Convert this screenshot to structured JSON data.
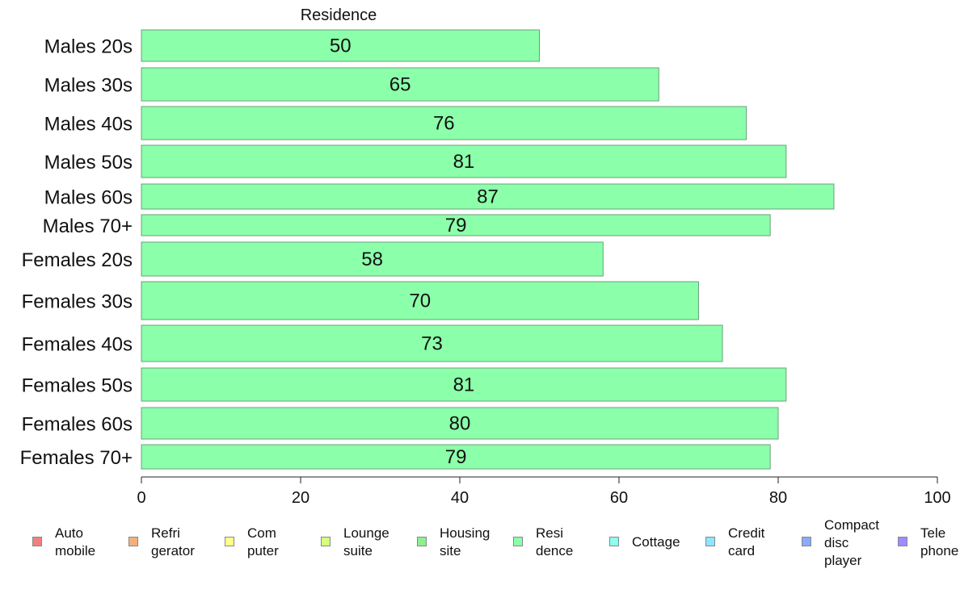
{
  "chart_data": {
    "type": "bar",
    "orientation": "horizontal",
    "title": "Residence",
    "categories": [
      "Males 20s",
      "Males 30s",
      "Males 40s",
      "Males 50s",
      "Males 60s",
      "Males 70+",
      "Females 20s",
      "Females 30s",
      "Females 40s",
      "Females 50s",
      "Females 60s",
      "Females 70+"
    ],
    "values": [
      50,
      65,
      76,
      81,
      87,
      79,
      58,
      70,
      73,
      81,
      80,
      79
    ],
    "xlim": [
      0,
      100
    ],
    "xticks": [
      0,
      20,
      40,
      60,
      80,
      100
    ],
    "xlabel": "",
    "ylabel": "",
    "grid": false,
    "bar_color": "#8cffaa",
    "bar_stroke": "#6aa17c",
    "legend_position": "bottom",
    "legend": [
      {
        "label": "Auto\nmobile",
        "color": "#f08080"
      },
      {
        "label": "Refri\ngerator",
        "color": "#f5b07a"
      },
      {
        "label": "Com\nputer",
        "color": "#ffff8c"
      },
      {
        "label": "Lounge\nsuite",
        "color": "#d4ff80"
      },
      {
        "label": "Housing\nsite",
        "color": "#8cf08c"
      },
      {
        "label": "Resi\ndence",
        "color": "#8cffaa"
      },
      {
        "label": "Cottage",
        "color": "#8cfff0"
      },
      {
        "label": "Credit\ncard",
        "color": "#8ce6ff"
      },
      {
        "label": "Compact\ndisc\nplayer",
        "color": "#8caaff"
      },
      {
        "label": "Tele\nphone",
        "color": "#a08cff"
      }
    ]
  }
}
